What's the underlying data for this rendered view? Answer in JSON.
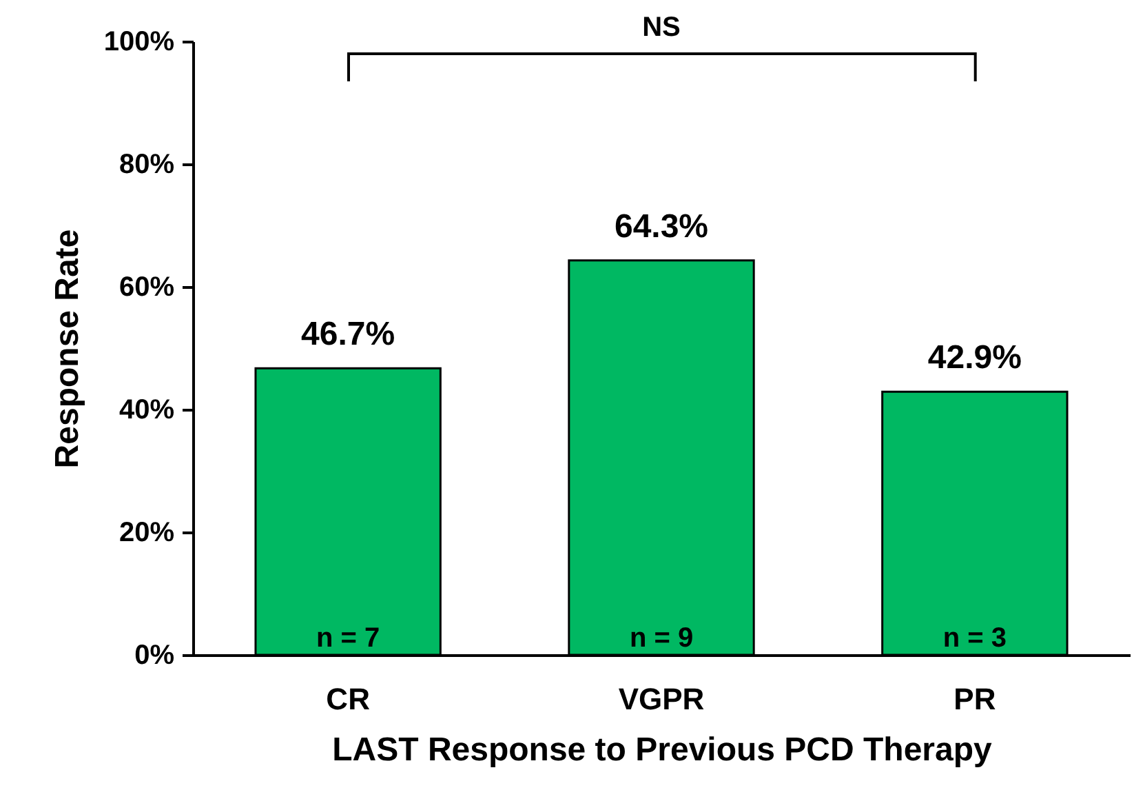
{
  "chart_data": {
    "type": "bar",
    "categories": [
      "CR",
      "VGPR",
      "PR"
    ],
    "values": [
      46.7,
      64.3,
      42.9
    ],
    "value_labels": [
      "46.7%",
      "64.3%",
      "42.9%"
    ],
    "color": "#00b862",
    "xlabel": "LAST Response to Previous PCD Therapy",
    "ylabel": "Response Rate",
    "ylim": [
      0,
      100
    ],
    "yticks": [
      {
        "value": 0,
        "label": "0%"
      },
      {
        "value": 20,
        "label": "20%"
      },
      {
        "value": 40,
        "label": "40%"
      },
      {
        "value": 60,
        "label": "60%"
      },
      {
        "value": 80,
        "label": "80%"
      },
      {
        "value": 100,
        "label": "100%"
      }
    ],
    "grid": false,
    "annotations": [
      "NS",
      {
        "text": "n = 7",
        "x": "CR",
        "y": 0
      },
      {
        "text": "n = 9",
        "x": "VGPR",
        "y": 0
      },
      {
        "text": "n = 3",
        "x": "PR",
        "y": 0
      }
    ]
  }
}
